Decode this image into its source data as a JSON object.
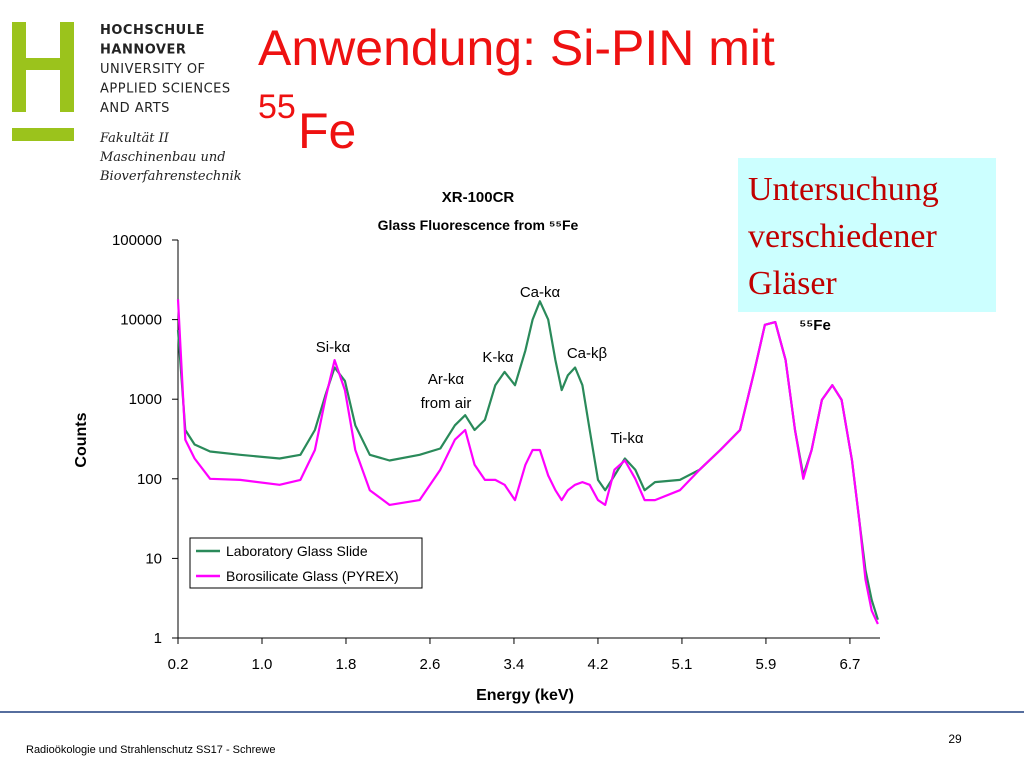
{
  "slide": {
    "title": {
      "text": "Anwendung: Si-PIN mit",
      "sup": "55",
      "rest": "Fe"
    },
    "logo_lines": [
      "HOCHSCHULE",
      "HANNOVER",
      "UNIVERSITY OF",
      "APPLIED SCIENCES",
      "AND ARTS"
    ],
    "faculty_lines": [
      "Fakultät II",
      "Maschinenbau und",
      "Bioverfahrenstechnik"
    ],
    "note_lines": [
      "Untersuchung",
      "verschiedener",
      "Gläser"
    ],
    "footer": "Radioökologie und Strahlenschutz SS17 - Schrewe",
    "page_number": "29"
  },
  "chart_data": {
    "type": "line",
    "title": "XR-100CR",
    "subtitle": "Glass Fluorescence from ⁵⁵Fe",
    "x_label": "Energy (keV)",
    "y_label": "Counts",
    "log_y": true,
    "legend": "lower left",
    "xlim": [
      0.2,
      6.97
    ],
    "xticks": [
      0.2,
      {
        "value": 1.01,
        "label": "1.0"
      },
      {
        "value": 1.82,
        "label": "1.8"
      },
      {
        "value": 2.63,
        "label": "2.6"
      },
      {
        "value": 3.44,
        "label": "3.4"
      },
      {
        "value": 4.25,
        "label": "4.2"
      },
      {
        "value": 5.06,
        "label": "5.1"
      },
      {
        "value": 5.87,
        "label": "5.9"
      },
      {
        "value": 6.68,
        "label": "6.7"
      }
    ],
    "ylim": [
      1,
      100000
    ],
    "yticks": [
      1,
      10,
      100,
      1000,
      10000,
      100000
    ],
    "annotations": [
      "Si-kα",
      "Ar-kα",
      "from air",
      "K-kα",
      "Ca-kα",
      "Ca-kβ",
      "Ti-kα",
      "⁵⁵Fe"
    ],
    "x": [
      0.2,
      0.27,
      0.36,
      0.51,
      0.8,
      1.18,
      1.38,
      1.52,
      1.62,
      1.71,
      1.81,
      1.91,
      2.05,
      2.24,
      2.53,
      2.73,
      2.87,
      2.97,
      3.06,
      3.16,
      3.26,
      3.35,
      3.45,
      3.55,
      3.62,
      3.69,
      3.77,
      3.84,
      3.9,
      3.96,
      4.03,
      4.1,
      4.17,
      4.25,
      4.32,
      4.41,
      4.51,
      4.61,
      4.7,
      4.8,
      5.04,
      5.23,
      5.43,
      5.62,
      5.76,
      5.86,
      5.96,
      6.06,
      6.15,
      6.23,
      6.31,
      6.41,
      6.51,
      6.6,
      6.7,
      6.77,
      6.83,
      6.89,
      6.95
    ],
    "series": [
      {
        "name": "Laboratory Glass Slide",
        "color": "#2a8a5a",
        "values": [
          7400,
          410,
          270,
          220,
          200,
          180,
          200,
          410,
          1100,
          2500,
          1700,
          470,
          200,
          170,
          200,
          240,
          470,
          630,
          410,
          550,
          1500,
          2200,
          1500,
          4100,
          10000,
          17000,
          10000,
          3100,
          1300,
          2000,
          2500,
          1500,
          410,
          97,
          72,
          110,
          180,
          130,
          72,
          91,
          97,
          130,
          230,
          410,
          2300,
          8600,
          9300,
          3100,
          410,
          110,
          230,
          980,
          1500,
          980,
          170,
          30,
          7.1,
          3.0,
          1.7
        ]
      },
      {
        "name": "Borosilicate Glass (PYREX)",
        "color": "#ff00ff",
        "values": [
          18000,
          310,
          180,
          100,
          97,
          84,
          97,
          230,
          980,
          3100,
          1300,
          230,
          72,
          47,
          54,
          130,
          310,
          410,
          150,
          97,
          97,
          84,
          54,
          150,
          230,
          230,
          110,
          72,
          54,
          72,
          84,
          91,
          84,
          54,
          47,
          130,
          170,
          100,
          54,
          54,
          72,
          130,
          230,
          410,
          2300,
          8600,
          9300,
          3100,
          410,
          100,
          230,
          980,
          1500,
          980,
          170,
          30,
          5.4,
          2.2,
          1.5
        ]
      }
    ]
  }
}
